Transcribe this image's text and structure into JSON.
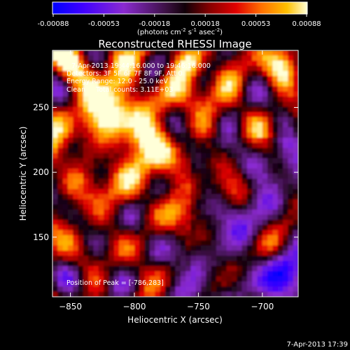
{
  "colorbar": {
    "tick_labels": [
      "-0.00088",
      "-0.00053",
      "-0.00018",
      "0.00018",
      "0.00053",
      "0.00088"
    ],
    "range": [
      -0.00088,
      0.00088
    ],
    "units_base": "(photons cm",
    "units_exp1": "-2",
    "units_mid1": " s",
    "units_exp2": "-1",
    "units_mid2": " asec",
    "units_exp3": "-2",
    "units_end": ")"
  },
  "chart_data": {
    "type": "heatmap",
    "title": "Reconstructed RHESSI Image",
    "xlabel": "Heliocentric X (arcsec)",
    "ylabel": "Heliocentric Y (arcsec)",
    "xlim": [
      -864,
      -672
    ],
    "ylim": [
      104,
      294
    ],
    "xticks": [
      -850,
      -800,
      -750,
      -700
    ],
    "yticks": [
      150,
      200,
      250
    ],
    "xtick_labels": [
      "−850",
      "−800",
      "−750",
      "−700"
    ],
    "ytick_labels": [
      "150",
      "200",
      "250"
    ],
    "annotations": [
      "7-Apr-2013 19:44:16.000 to 19:46:16.000",
      "Detectors: 3F 5F 6F 7F 8F 9F, Att 0",
      "Energy Range: 12.0 - 25.0 keV",
      "Clean     Total counts: 3.11E+03"
    ],
    "peak_label": "Position of Peak = [-786,283]",
    "peak": [
      -786,
      283
    ]
  },
  "footer": {
    "timestamp": "7-Apr-2013 17:39"
  }
}
